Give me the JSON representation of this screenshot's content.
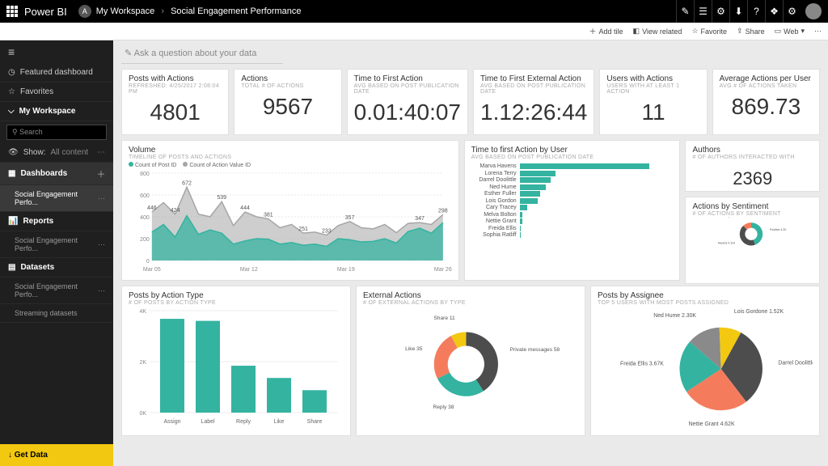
{
  "brand": "Power BI",
  "breadcrumb": {
    "workspace": "My Workspace",
    "page": "Social Engagement Performance"
  },
  "topbar_icons": [
    "✎",
    "☰",
    "⚙",
    "⬇",
    "?",
    "❖",
    "⚙"
  ],
  "toolbar": {
    "add_tile": "Add tile",
    "view_related": "View related",
    "favorite": "Favorite",
    "share": "Share",
    "web": "Web"
  },
  "sidebar": {
    "featured": "Featured dashboard",
    "favorites": "Favorites",
    "workspace": "My Workspace",
    "search_ph": "Search",
    "show": "Show:",
    "show_val": "All content",
    "dashboards": "Dashboards",
    "dashboards_item": "Social Engagement Perfo...",
    "reports": "Reports",
    "reports_item": "Social Engagement Perfo...",
    "datasets": "Datasets",
    "datasets_item1": "Social Engagement Perfo...",
    "datasets_item2": "Streaming datasets",
    "getdata": "Get Data"
  },
  "qna_placeholder": "Ask a question about your data",
  "kpi": {
    "posts_actions": {
      "title": "Posts with Actions",
      "sub": "REFRESHED: 4/25/2017 2:08:04 PM",
      "val": "4801"
    },
    "actions": {
      "title": "Actions",
      "sub": "TOTAL # OF ACTIONS",
      "val": "9567"
    },
    "ttfa": {
      "title": "Time to First Action",
      "sub": "AVG BASED ON POST PUBLICATION DATE",
      "val": "0.01:40:07"
    },
    "ttfea": {
      "title": "Time to First External Action",
      "sub": "AVG BASED ON POST PUBLICATION DATE",
      "val": "1.12:26:44"
    },
    "users": {
      "title": "Users with Actions",
      "sub": "USERS WITH AT LEAST 1 ACTION",
      "val": "11"
    },
    "avg": {
      "title": "Average Actions per User",
      "sub": "AVG # OF ACTIONS TAKEN",
      "val": "869.73"
    }
  },
  "volume": {
    "title": "Volume",
    "sub": "TIMELINE OF POSTS AND ACTIONS",
    "legend": [
      "Count of Post ID",
      "Count of Action Value ID"
    ],
    "colors": {
      "bg": "#ffffff",
      "series1": "#34b3a0",
      "series2": "#a6a6a6",
      "grid": "#e8e8e8",
      "axis": "#888"
    },
    "ylim": [
      0,
      800
    ],
    "yticks": [
      0,
      200,
      400,
      600,
      800
    ],
    "xticks": [
      "Mar 05",
      "Mar 12",
      "Mar 19",
      "Mar 26"
    ],
    "labels": [
      446,
      672,
      424,
      539,
      444,
      381,
      251,
      233,
      357,
      347,
      298
    ],
    "series1": [
      260,
      330,
      215,
      410,
      240,
      280,
      250,
      150,
      180,
      200,
      195,
      150,
      165,
      140,
      150,
      130,
      200,
      190,
      170,
      175,
      200,
      160,
      265,
      296,
      250,
      347
    ],
    "series2": [
      446,
      530,
      424,
      672,
      424,
      401,
      539,
      320,
      444,
      400,
      381,
      300,
      330,
      251,
      260,
      233,
      320,
      357,
      300,
      290,
      330,
      255,
      340,
      347,
      330,
      420
    ]
  },
  "ttfa_user": {
    "title": "Time to first Action by User",
    "sub": "AVG BASED ON POST PUBLICATION DATE",
    "color": "#34b3a0",
    "rows": [
      {
        "name": "Marva Havens",
        "v": 100
      },
      {
        "name": "Lorena Terry",
        "v": 28
      },
      {
        "name": "Darrel Doolittle",
        "v": 24
      },
      {
        "name": "Ned Hume",
        "v": 20
      },
      {
        "name": "Esther Fuller",
        "v": 16
      },
      {
        "name": "Lois Gordon",
        "v": 14
      },
      {
        "name": "Cary Tracey",
        "v": 6
      },
      {
        "name": "Melva Bolton",
        "v": 2
      },
      {
        "name": "Nettie Grant",
        "v": 2
      },
      {
        "name": "Freida Ellis",
        "v": 1
      },
      {
        "name": "Sophia Ratliff",
        "v": 1
      }
    ]
  },
  "authors": {
    "title": "Authors",
    "sub": "# OF AUTHORS INTERACTED WITH",
    "val": "2369"
  },
  "sentiment": {
    "title": "Actions by Sentiment",
    "sub": "# OF ACTIONS BY SENTIMENT",
    "slices": [
      {
        "label": "Positive 4.2K",
        "v": 4200,
        "color": "#34b3a0"
      },
      {
        "label": "Neutral 4.11K",
        "v": 4110,
        "color": "#4d4d4d"
      },
      {
        "label": "Negative 1.15K",
        "v": 1150,
        "color": "#f47c5d"
      }
    ]
  },
  "posts_action_type": {
    "title": "Posts by Action Type",
    "sub": "# OF POSTS BY ACTION TYPE",
    "color": "#34b3a0",
    "yticks": [
      "0K",
      "2K",
      "4K"
    ],
    "bars": [
      {
        "label": "Assign",
        "v": 4600
      },
      {
        "label": "Label",
        "v": 4500
      },
      {
        "label": "Reply",
        "v": 2300
      },
      {
        "label": "Like",
        "v": 1700
      },
      {
        "label": "Share",
        "v": 1100
      }
    ],
    "ymax": 5000
  },
  "external_actions": {
    "title": "External Actions",
    "sub": "# OF EXTERNAL ACTIONS BY TYPE",
    "slices": [
      {
        "label": "Private messages 58",
        "v": 58,
        "color": "#4d4d4d"
      },
      {
        "label": "Reply 38",
        "v": 38,
        "color": "#34b3a0"
      },
      {
        "label": "Like 35",
        "v": 35,
        "color": "#f47c5d"
      },
      {
        "label": "Share 11",
        "v": 11,
        "color": "#f2c811"
      }
    ]
  },
  "posts_assignee": {
    "title": "Posts by Assignee",
    "sub": "TOP 5 USERS WITH MOST POSTS ASSIGNED",
    "slices": [
      {
        "label": "Darrel Doolittle 5.60K",
        "v": 5600,
        "color": "#4d4d4d"
      },
      {
        "label": "Nettie Grant 4.62K",
        "v": 4620,
        "color": "#f47c5d"
      },
      {
        "label": "Freida Ellis 3.67K",
        "v": 3670,
        "color": "#34b3a0"
      },
      {
        "label": "Ned Hume 2.30K",
        "v": 2300,
        "color": "#8a8a8a"
      },
      {
        "label": "Lois Gordone 1.52K",
        "v": 1520,
        "color": "#f2c811"
      }
    ]
  }
}
